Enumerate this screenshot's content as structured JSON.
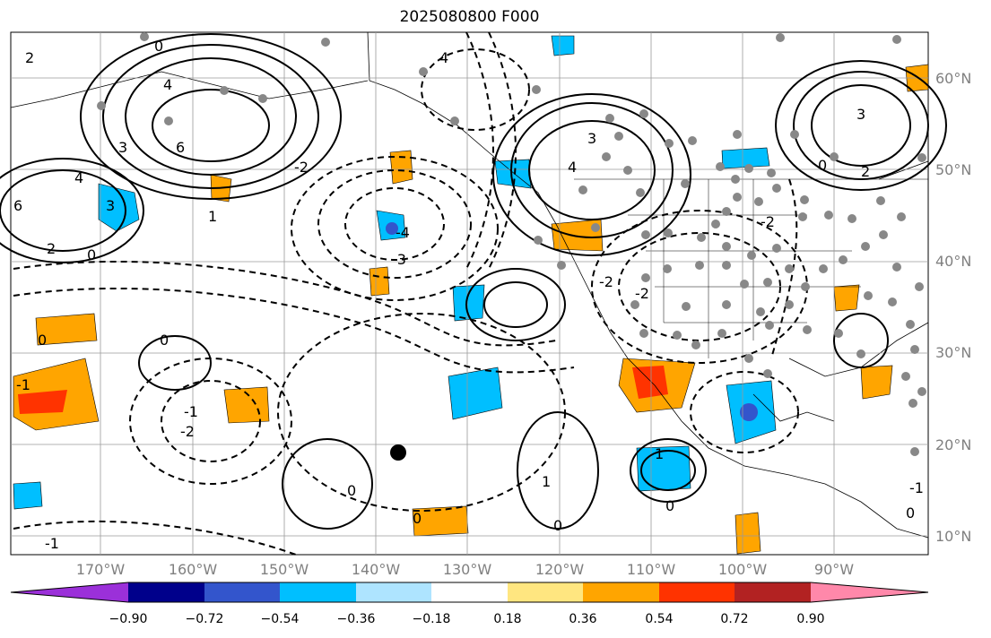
{
  "title": "2025080800 F000",
  "lat_labels": [
    "60°N",
    "50°N",
    "40°N",
    "30°N",
    "20°N",
    "10°N"
  ],
  "lon_labels": [
    "170°W",
    "160°W",
    "150°W",
    "140°W",
    "130°W",
    "120°W",
    "110°W",
    "100°W",
    "90°W"
  ],
  "contour_labels": [
    "2",
    "0",
    "-1",
    "4",
    "6",
    "-4",
    "-3",
    "-2",
    "3",
    "1"
  ],
  "colorbar": {
    "ticks": [
      "−0.90",
      "−0.72",
      "−0.54",
      "−0.36",
      "−0.18",
      "0.18",
      "0.36",
      "0.54",
      "0.72",
      "0.90"
    ],
    "colors": [
      "#9b30d9",
      "#00008b",
      "#3355cc",
      "#00bfff",
      "#aee4ff",
      "#ffffff",
      "#ffe680",
      "#ffa500",
      "#ff3300",
      "#b22222",
      "#ff88aa"
    ]
  }
}
